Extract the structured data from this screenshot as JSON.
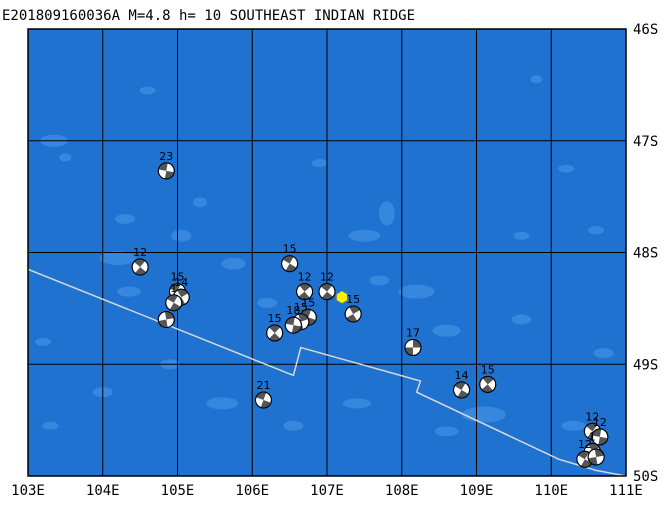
{
  "map": {
    "title": "E201809160036A M=4.8 h= 10 SOUTHEAST INDIAN RIDGE",
    "lon_range": [
      103,
      111
    ],
    "lat_range": [
      -50,
      -46
    ],
    "lon_ticks": [
      "103E",
      "104E",
      "105E",
      "106E",
      "107E",
      "108E",
      "109E",
      "110E",
      "111E"
    ],
    "lat_ticks": [
      "46S",
      "47S",
      "48S",
      "49S",
      "50S"
    ],
    "colors": {
      "ocean": "#1f72d0",
      "shallow": "#3a8ae0",
      "grid": "#000000",
      "ridge": "#d8d8d8",
      "beachball_dark": "#555555",
      "beachball_light": "#ffffff",
      "epicenter": "#ffee00"
    },
    "ridge_line": [
      [
        103.0,
        48.15
      ],
      [
        106.55,
        49.1
      ],
      [
        106.65,
        48.85
      ],
      [
        108.25,
        49.15
      ],
      [
        108.2,
        49.25
      ],
      [
        110.1,
        49.85
      ],
      [
        110.6,
        49.95
      ],
      [
        111.0,
        50.0
      ]
    ],
    "epicenter": {
      "lon": 107.2,
      "lat": 48.4
    },
    "mechanisms": [
      {
        "lon": 104.85,
        "lat": 47.27,
        "label": "23",
        "rot": 10
      },
      {
        "lon": 104.5,
        "lat": 48.13,
        "label": "12",
        "rot": 40
      },
      {
        "lon": 105.0,
        "lat": 48.35,
        "label": "15",
        "rot": 20
      },
      {
        "lon": 105.05,
        "lat": 48.4,
        "label": "14",
        "rot": 60
      },
      {
        "lon": 104.95,
        "lat": 48.45,
        "label": "1",
        "rot": 30
      },
      {
        "lon": 104.85,
        "lat": 48.6,
        "label": "",
        "rot": 80
      },
      {
        "lon": 106.5,
        "lat": 48.1,
        "label": "15",
        "rot": 30
      },
      {
        "lon": 106.7,
        "lat": 48.35,
        "label": "12",
        "rot": 50
      },
      {
        "lon": 106.75,
        "lat": 48.58,
        "label": "15",
        "rot": 20
      },
      {
        "lon": 106.65,
        "lat": 48.62,
        "label": "15",
        "rot": 70
      },
      {
        "lon": 106.55,
        "lat": 48.65,
        "label": "18",
        "rot": 10
      },
      {
        "lon": 106.3,
        "lat": 48.72,
        "label": "15",
        "rot": 45
      },
      {
        "lon": 107.0,
        "lat": 48.35,
        "label": "12",
        "rot": 40
      },
      {
        "lon": 107.35,
        "lat": 48.55,
        "label": "15",
        "rot": 60
      },
      {
        "lon": 108.15,
        "lat": 48.85,
        "label": "17",
        "rot": 90
      },
      {
        "lon": 108.8,
        "lat": 49.23,
        "label": "14",
        "rot": 30
      },
      {
        "lon": 109.15,
        "lat": 49.18,
        "label": "15",
        "rot": 50
      },
      {
        "lon": 106.15,
        "lat": 49.32,
        "label": "21",
        "rot": 20
      },
      {
        "lon": 110.55,
        "lat": 49.6,
        "label": "12",
        "rot": 40
      },
      {
        "lon": 110.65,
        "lat": 49.65,
        "label": "12",
        "rot": 10
      },
      {
        "lon": 110.55,
        "lat": 49.78,
        "label": "1",
        "rot": 60
      },
      {
        "lon": 110.45,
        "lat": 49.85,
        "label": "12",
        "rot": 30
      },
      {
        "lon": 110.6,
        "lat": 49.83,
        "label": "",
        "rot": 80
      }
    ],
    "shallows": [
      [
        103.35,
        47.0,
        14,
        6
      ],
      [
        103.5,
        47.15,
        6,
        4
      ],
      [
        104.3,
        47.7,
        10,
        5
      ],
      [
        104.2,
        48.05,
        18,
        7
      ],
      [
        104.35,
        48.35,
        12,
        5
      ],
      [
        105.3,
        47.55,
        7,
        5
      ],
      [
        105.05,
        47.85,
        10,
        6
      ],
      [
        105.75,
        48.1,
        12,
        6
      ],
      [
        106.2,
        48.45,
        10,
        5
      ],
      [
        106.9,
        47.2,
        8,
        4
      ],
      [
        107.8,
        47.65,
        8,
        12
      ],
      [
        107.5,
        47.85,
        16,
        6
      ],
      [
        107.7,
        48.25,
        10,
        5
      ],
      [
        108.2,
        48.35,
        18,
        7
      ],
      [
        108.6,
        48.7,
        14,
        6
      ],
      [
        109.1,
        49.45,
        22,
        8
      ],
      [
        108.6,
        49.6,
        12,
        5
      ],
      [
        107.4,
        49.35,
        14,
        5
      ],
      [
        106.55,
        49.55,
        10,
        5
      ],
      [
        105.6,
        49.35,
        16,
        6
      ],
      [
        104.9,
        49.0,
        10,
        5
      ],
      [
        109.6,
        48.6,
        10,
        5
      ],
      [
        109.6,
        47.85,
        8,
        4
      ],
      [
        110.2,
        47.25,
        8,
        4
      ],
      [
        110.7,
        48.9,
        10,
        5
      ],
      [
        104.0,
        49.25,
        10,
        5
      ],
      [
        103.3,
        49.55,
        8,
        4
      ],
      [
        110.3,
        49.55,
        12,
        5
      ],
      [
        110.6,
        47.8,
        8,
        4
      ],
      [
        104.6,
        46.55,
        8,
        4
      ],
      [
        109.8,
        46.45,
        6,
        4
      ],
      [
        103.2,
        48.8,
        8,
        4
      ]
    ]
  }
}
